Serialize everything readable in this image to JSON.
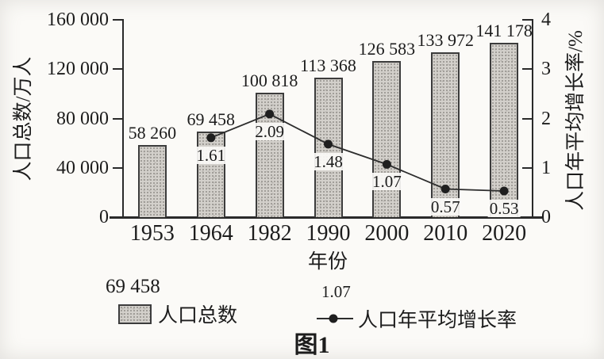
{
  "chart": {
    "caption": "图1",
    "x_axis_label": "年份",
    "y_left_label": "人口总数/万人",
    "y_right_label": "人口年平均增长率/%",
    "legend": {
      "bar_example_value": "69 458",
      "bar_label": "人口总数",
      "line_example_value": "1.07",
      "line_label": "人口年平均增长率"
    }
  },
  "chart_data": {
    "type": "bar+line",
    "title": "图1",
    "xlabel": "年份",
    "categories": [
      "1953",
      "1964",
      "1982",
      "1990",
      "2000",
      "2010",
      "2020"
    ],
    "series": [
      {
        "name": "人口总数",
        "type": "bar",
        "axis": "left",
        "unit": "万人",
        "values": [
          58260,
          69458,
          100818,
          113368,
          126583,
          133972,
          141178
        ],
        "labels": [
          "58 260",
          "69 458",
          "100 818",
          "113 368",
          "126 583",
          "133 972",
          "141 178"
        ]
      },
      {
        "name": "人口年平均增长率",
        "type": "line",
        "axis": "right",
        "unit": "%",
        "values": [
          null,
          1.61,
          2.09,
          1.48,
          1.07,
          0.57,
          0.53
        ],
        "labels": [
          "",
          "1.61",
          "2.09",
          "1.48",
          "1.07",
          "0.57",
          "0.53"
        ]
      }
    ],
    "left_axis": {
      "label": "人口总数/万人",
      "range": [
        0,
        160000
      ],
      "ticks": [
        0,
        40000,
        80000,
        120000,
        160000
      ],
      "tick_labels": [
        "0",
        "40 000",
        "80 000",
        "120 000",
        "160 000"
      ]
    },
    "right_axis": {
      "label": "人口年平均增长率/%",
      "range": [
        0,
        4
      ],
      "ticks": [
        0,
        1,
        2,
        3,
        4
      ],
      "tick_labels": [
        "0",
        "1",
        "2",
        "3",
        "4"
      ]
    },
    "grid": false,
    "legend_position": "bottom"
  },
  "colors": {
    "bar_fill": "#d3d0cb",
    "bar_border": "#3c3c3c",
    "line": "#2d2d2d",
    "marker": "#1f1f1f",
    "text": "#1c1c1c",
    "background": "#fbfaf7"
  }
}
